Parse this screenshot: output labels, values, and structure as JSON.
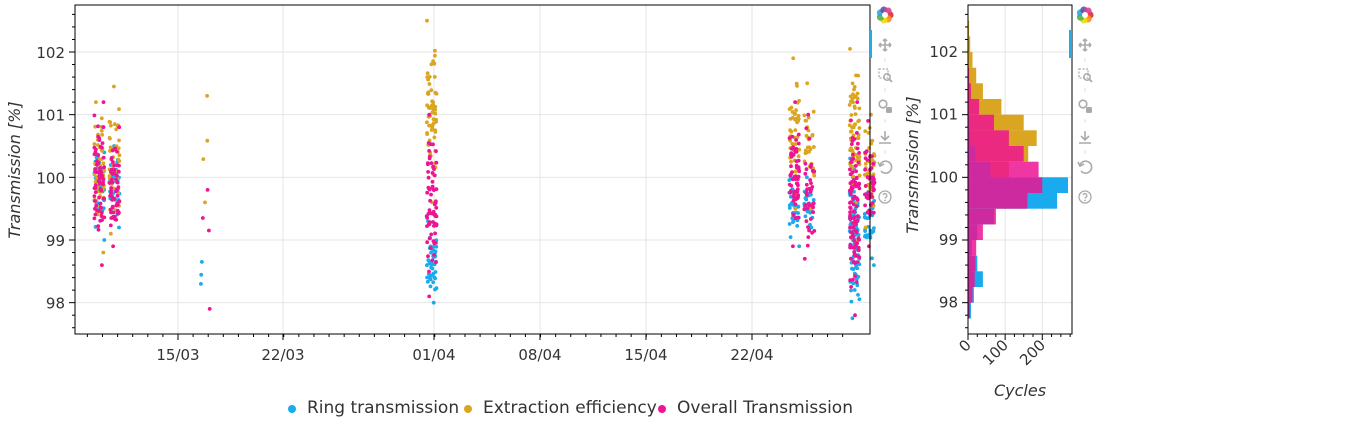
{
  "colors": {
    "ring": "#1aaaee",
    "extraction": "#daa520",
    "overall": "#ee1493",
    "grid": "#e5e5e5",
    "axis": "#000000",
    "toolbar_icon": "#aaaaaa",
    "active_tool": "#26aae1"
  },
  "toolbar": {
    "tools": [
      "bokeh-logo-icon",
      "pan-icon",
      "box-zoom-icon",
      "wheel-zoom-icon",
      "save-icon",
      "reset-icon",
      "help-icon"
    ]
  },
  "chart_data": [
    {
      "type": "scatter",
      "title": "",
      "xlabel": "",
      "ylabel": "Transmission [%]",
      "x_ticks": [
        "15/03",
        "22/03",
        "01/04",
        "08/04",
        "15/04",
        "22/04"
      ],
      "y_ticks": [
        "98",
        "99",
        "100",
        "101",
        "102"
      ],
      "ylim": [
        97.5,
        102.75
      ],
      "grid": true,
      "legend_position": "bottom",
      "series": [
        {
          "name": "Ring transmission",
          "color_key": "ring",
          "clusters": [
            {
              "date": "2024-03-09",
              "ymin": 99.0,
              "ymax": 100.8,
              "count": 55
            },
            {
              "date": "2024-03-10",
              "ymin": 99.2,
              "ymax": 100.5,
              "count": 35
            },
            {
              "date": "2024-03-16",
              "ymin": 98.3,
              "ymax": 98.65,
              "count": 3
            },
            {
              "date": "2024-03-31",
              "ymin": 98.0,
              "ymax": 99.3,
              "count": 45
            },
            {
              "date": "2024-04-24",
              "ymin": 98.9,
              "ymax": 100.0,
              "count": 40
            },
            {
              "date": "2024-04-25",
              "ymin": 99.2,
              "ymax": 100.0,
              "count": 25
            },
            {
              "date": "2024-04-28",
              "ymin": 97.75,
              "ymax": 100.3,
              "count": 90
            },
            {
              "date": "2024-04-29",
              "ymin": 98.6,
              "ymax": 100.0,
              "count": 30
            }
          ]
        },
        {
          "name": "Extraction efficiency",
          "color_key": "extraction",
          "clusters": [
            {
              "date": "2024-03-09",
              "ymin": 98.8,
              "ymax": 101.2,
              "count": 55
            },
            {
              "date": "2024-03-10",
              "ymin": 99.1,
              "ymax": 101.45,
              "count": 45
            },
            {
              "date": "2024-03-16",
              "ymin": 99.6,
              "ymax": 101.3,
              "count": 4
            },
            {
              "date": "2024-03-31",
              "ymin": 99.6,
              "ymax": 102.5,
              "count": 60
            },
            {
              "date": "2024-04-24",
              "ymin": 99.5,
              "ymax": 101.9,
              "count": 45
            },
            {
              "date": "2024-04-25",
              "ymin": 99.5,
              "ymax": 101.5,
              "count": 30
            },
            {
              "date": "2024-04-28",
              "ymin": 99.0,
              "ymax": 102.05,
              "count": 70
            },
            {
              "date": "2024-04-29",
              "ymin": 99.2,
              "ymax": 101.0,
              "count": 40
            }
          ]
        },
        {
          "name": "Overall Transmission",
          "color_key": "overall",
          "clusters": [
            {
              "date": "2024-03-09",
              "ymin": 98.6,
              "ymax": 101.2,
              "count": 70
            },
            {
              "date": "2024-03-10",
              "ymin": 98.9,
              "ymax": 100.8,
              "count": 60
            },
            {
              "date": "2024-03-16",
              "ymin": 97.9,
              "ymax": 99.8,
              "count": 4
            },
            {
              "date": "2024-03-31",
              "ymin": 98.1,
              "ymax": 101.0,
              "count": 70
            },
            {
              "date": "2024-04-24",
              "ymin": 98.9,
              "ymax": 101.2,
              "count": 60
            },
            {
              "date": "2024-04-25",
              "ymin": 98.7,
              "ymax": 101.0,
              "count": 40
            },
            {
              "date": "2024-04-28",
              "ymin": 97.8,
              "ymax": 101.2,
              "count": 110
            },
            {
              "date": "2024-04-29",
              "ymin": 98.9,
              "ymax": 100.9,
              "count": 50
            }
          ]
        }
      ]
    },
    {
      "type": "histogram",
      "orientation": "horizontal",
      "title": "",
      "xlabel": "Cycles",
      "ylabel": "Transmission [%]",
      "x_ticks": [
        "0",
        "100",
        "200"
      ],
      "y_ticks": [
        "98",
        "99",
        "100",
        "101",
        "102"
      ],
      "ylim": [
        97.5,
        102.75
      ],
      "xlim": [
        0,
        280
      ],
      "bins": [
        [
          97.75,
          98.0
        ],
        [
          98.0,
          98.25
        ],
        [
          98.25,
          98.5
        ],
        [
          98.5,
          98.75
        ],
        [
          98.75,
          99.0
        ],
        [
          99.0,
          99.25
        ],
        [
          99.25,
          99.5
        ],
        [
          99.5,
          99.75
        ],
        [
          99.75,
          100.0
        ],
        [
          100.0,
          100.25
        ],
        [
          100.25,
          100.5
        ],
        [
          100.5,
          100.75
        ],
        [
          100.75,
          101.0
        ],
        [
          101.0,
          101.25
        ],
        [
          101.25,
          101.5
        ],
        [
          101.5,
          101.75
        ],
        [
          101.75,
          102.0
        ],
        [
          102.0,
          102.25
        ],
        [
          102.25,
          102.5
        ]
      ],
      "series": [
        {
          "name": "Extraction efficiency",
          "color_key": "extraction",
          "counts": [
            0,
            0,
            0,
            0,
            0,
            2,
            6,
            18,
            42,
            110,
            162,
            185,
            150,
            90,
            40,
            22,
            12,
            6,
            3
          ]
        },
        {
          "name": "Ring transmission",
          "color_key": "ring",
          "counts": [
            8,
            16,
            40,
            25,
            10,
            25,
            70,
            240,
            270,
            60,
            20,
            6,
            2,
            0,
            0,
            0,
            0,
            0,
            0
          ]
        },
        {
          "name": "Overall Transmission",
          "color_key": "overall",
          "counts": [
            5,
            12,
            18,
            20,
            22,
            40,
            75,
            160,
            200,
            190,
            150,
            110,
            70,
            30,
            8,
            3,
            0,
            0,
            0
          ]
        }
      ]
    }
  ],
  "legend": [
    {
      "label": "Ring transmission",
      "color_key": "ring"
    },
    {
      "label": "Extraction efficiency",
      "color_key": "extraction"
    },
    {
      "label": "Overall Transmission",
      "color_key": "overall"
    }
  ]
}
